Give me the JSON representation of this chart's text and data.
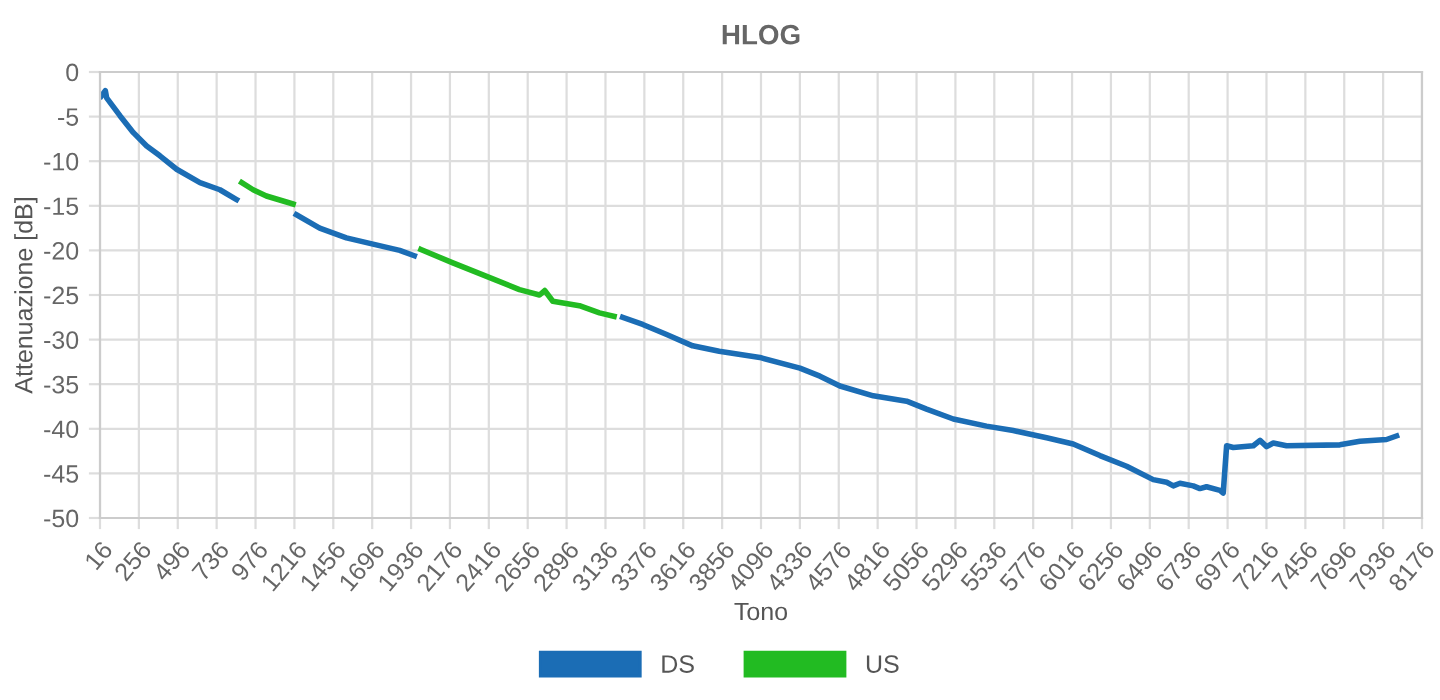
{
  "chart_data": {
    "type": "line",
    "title": "HLOG",
    "xlabel": "Tono",
    "ylabel": "Attenuazione [dB]",
    "xlim": [
      16,
      8176
    ],
    "xticks": [
      16,
      256,
      496,
      736,
      976,
      1216,
      1456,
      1696,
      1936,
      2176,
      2416,
      2656,
      2896,
      3136,
      3376,
      3616,
      3856,
      4096,
      4336,
      4576,
      4816,
      5056,
      5296,
      5536,
      5776,
      6016,
      6256,
      6496,
      6736,
      6976,
      7216,
      7456,
      7696,
      7936,
      8176
    ],
    "ylim": [
      -50,
      0
    ],
    "yticks": [
      -50,
      -45,
      -40,
      -35,
      -30,
      -25,
      -20,
      -15,
      -10,
      -5,
      0
    ],
    "grid": true,
    "legend": "bottom",
    "marker": "none",
    "line_style": "solid",
    "series": [
      {
        "name": "DS",
        "color": "#1b6db5",
        "x": [
          24,
          49,
          57,
          139,
          222,
          304,
          386,
          489,
          633,
          756,
          859,
          1000,
          1228,
          1372,
          1537,
          1701,
          1866,
          1956,
          2500,
          3242,
          3366,
          3510,
          3674,
          3838,
          4089,
          4336,
          4460,
          4583,
          4789,
          4995,
          5118,
          5283,
          5488,
          5653,
          5859,
          6023,
          6188,
          6353,
          6517,
          6600,
          6641,
          6682,
          6764,
          6805,
          6846,
          6929,
          6949,
          6970,
          7011,
          7135,
          7176,
          7217,
          7258,
          7340,
          7669,
          7793,
          7957,
          8019
        ],
        "values": [
          -2.7,
          -2.1,
          -2.9,
          -4.9,
          -6.8,
          -8.3,
          -9.4,
          -10.9,
          -12.4,
          -13.2,
          -14.3,
          null,
          -16.0,
          -17.5,
          -18.6,
          -19.3,
          -20.0,
          -20.6,
          null,
          -27.5,
          -28.3,
          -29.4,
          -30.7,
          -31.3,
          -32.0,
          -33.2,
          -34.1,
          -35.2,
          -36.3,
          -36.9,
          -37.8,
          -38.9,
          -39.7,
          -40.2,
          -41.0,
          -41.7,
          -43.0,
          -44.2,
          -45.7,
          -46.0,
          -46.4,
          -46.1,
          -46.4,
          -46.7,
          -46.5,
          -46.9,
          -47.2,
          -41.9,
          -42.1,
          -41.9,
          -41.3,
          -42.0,
          -41.6,
          -41.9,
          -41.8,
          -41.4,
          -41.2,
          -40.8
        ]
      },
      {
        "name": "US",
        "color": "#22bb22",
        "x": [
          891,
          961,
          1043,
          1208,
          1600,
          1997,
          2194,
          2441,
          2605,
          2729,
          2761,
          2811,
          2975,
          3099,
          3189
        ],
        "values": [
          -12.4,
          -13.2,
          -13.9,
          -14.8,
          null,
          -19.9,
          -21.4,
          -23.2,
          -24.4,
          -25.0,
          -24.5,
          -25.7,
          -26.2,
          -27.0,
          -27.4
        ]
      }
    ]
  }
}
